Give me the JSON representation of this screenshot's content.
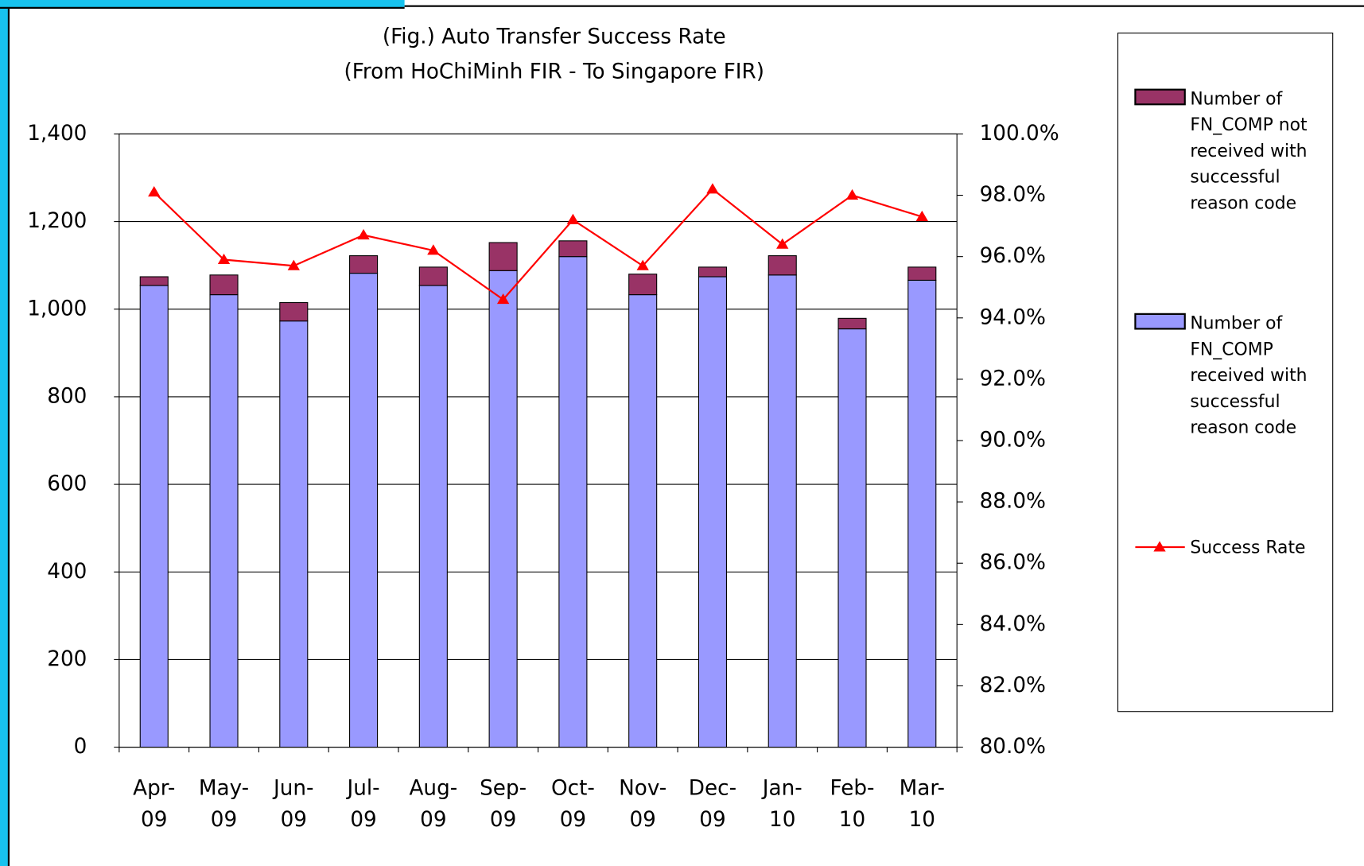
{
  "chart_data": {
    "type": "bar",
    "title": "(Fig.) Auto Transfer Success Rate",
    "subtitle": "(From HoChiMinh FIR - To Singapore FIR)",
    "categories": [
      "Apr-\n09",
      "May-\n09",
      "Jun-\n09",
      "Jul-\n09",
      "Aug-\n09",
      "Sep-\n09",
      "Oct-\n09",
      "Nov-\n09",
      "Dec-\n09",
      "Jan-\n10",
      "Feb-\n10",
      "Mar-\n10"
    ],
    "series": [
      {
        "name": "Number of FN_COMP not received with successful reason code",
        "color": "#993366",
        "values": [
          20,
          45,
          42,
          40,
          42,
          64,
          36,
          47,
          22,
          44,
          24,
          30
        ]
      },
      {
        "name": "Number of FN_COMP received with successful reason code",
        "color": "#9999ff",
        "values": [
          1054,
          1033,
          973,
          1082,
          1054,
          1088,
          1120,
          1033,
          1074,
          1078,
          955,
          1066
        ]
      },
      {
        "name": "Success Rate",
        "type": "line",
        "axis": "y2",
        "color": "#ff0000",
        "values": [
          98.1,
          95.9,
          95.7,
          96.7,
          96.2,
          94.6,
          97.2,
          95.7,
          98.2,
          96.4,
          98.0,
          97.3
        ]
      }
    ],
    "stacked": true,
    "grid": true,
    "ylim": [
      0,
      1400
    ],
    "yticks": [
      0,
      200,
      400,
      600,
      800,
      {
        "value": 1000,
        "label": "1,000"
      },
      {
        "value": 1200,
        "label": "1,200"
      },
      {
        "value": 1400,
        "label": "1,400"
      }
    ],
    "y2lim": [
      80,
      100
    ],
    "y2ticks": [
      {
        "value": 80,
        "label": "80.0%"
      },
      {
        "value": 82,
        "label": "82.0%"
      },
      {
        "value": 84,
        "label": "84.0%"
      },
      {
        "value": 86,
        "label": "86.0%"
      },
      {
        "value": 88,
        "label": "88.0%"
      },
      {
        "value": 90,
        "label": "90.0%"
      },
      {
        "value": 92,
        "label": "92.0%"
      },
      {
        "value": 94,
        "label": "94.0%"
      },
      {
        "value": 96,
        "label": "96.0%"
      },
      {
        "value": 98,
        "label": "98.0%"
      },
      {
        "value": 100,
        "label": "100.0%"
      }
    ],
    "legend": "right"
  }
}
